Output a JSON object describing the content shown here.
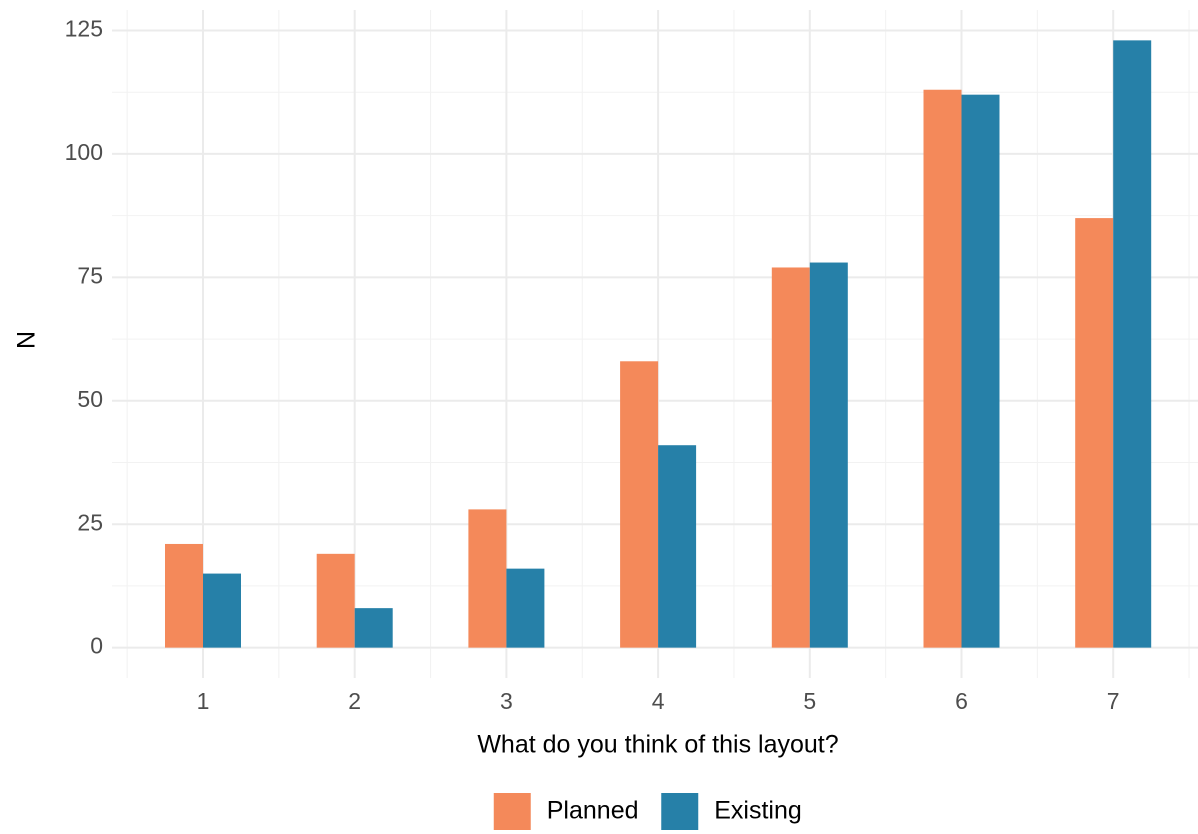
{
  "chart_data": {
    "type": "bar",
    "x_label": "What do you think of this layout?",
    "y_label": "N",
    "categories": [
      "1",
      "2",
      "3",
      "4",
      "5",
      "6",
      "7"
    ],
    "series": [
      {
        "name": "Planned",
        "color": "#f4895a",
        "values": [
          21,
          19,
          28,
          58,
          77,
          113,
          87
        ]
      },
      {
        "name": "Existing",
        "color": "#2680a8",
        "values": [
          15,
          8,
          16,
          41,
          78,
          112,
          123
        ]
      }
    ],
    "ylim": [
      -6.15,
      129.15
    ],
    "yticks": [
      0,
      25,
      50,
      75,
      100,
      125
    ],
    "grid": true,
    "legend": "bottom"
  }
}
